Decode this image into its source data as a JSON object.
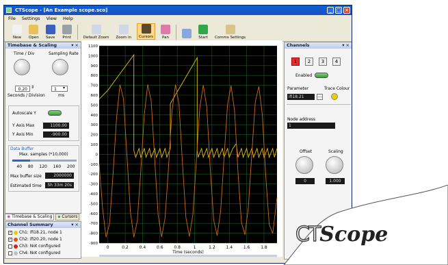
{
  "window": {
    "title": "CTScope - [An Example scope.sco]"
  },
  "menu": [
    "File",
    "Settings",
    "View",
    "Help"
  ],
  "toolbar": [
    {
      "label": "New",
      "icon": "new-file-icon",
      "color": "#f2f2f2"
    },
    {
      "label": "Open",
      "icon": "folder-icon",
      "color": "#e8c15a"
    },
    {
      "label": "Save",
      "icon": "floppy-disk-icon",
      "color": "#3a5fc0"
    },
    {
      "label": "Print",
      "icon": "printer-icon",
      "color": "#9aa0a8"
    },
    {
      "label": "Default Zoom",
      "icon": "default-zoom-icon",
      "color": "#cfd8e6"
    },
    {
      "label": "Zoom in",
      "icon": "zoom-in-icon",
      "color": "#cfd8e6"
    },
    {
      "label": "Cursors",
      "icon": "cursors-icon",
      "color": "#5a4a2a",
      "active": true
    },
    {
      "label": "Pan",
      "icon": "pan-icon",
      "color": "#e07aa8"
    },
    {
      "label": "",
      "icon": "stop-icon",
      "color": "#8aa6e0"
    },
    {
      "label": "Start",
      "icon": "play-icon",
      "color": "#2ea84a"
    },
    {
      "label": "Comms Settings",
      "icon": "comms-settings-icon",
      "color": "#d6c48a"
    }
  ],
  "timebase": {
    "title": "Timebase & Scaling",
    "time_div_label": "Time / Div",
    "sampling_rate_label": "Sampling Rate",
    "time_div_value": "0.20",
    "seconds_label": "Seconds / Division",
    "sampling_value": "1",
    "ms_label": "ms",
    "autoscale_label": "Autoscale Y",
    "y_max_label": "Y Axis Max",
    "y_max_value": "1100.00",
    "y_min_label": "Y Axis Min",
    "y_min_value": "-900.00",
    "buffer_title": "Data Buffer",
    "max_samples_label": "Max. samples (*10,000)",
    "slider_ticks": [
      "40",
      "80",
      "120",
      "160",
      "200"
    ],
    "slider_fraction": 0.28,
    "buffer_size_label": "Max buffer size",
    "buffer_size_value": "2000000",
    "est_time_label": "Estimated time",
    "est_time_value": "5h 33m 20s"
  },
  "tabs": [
    {
      "label": "Timebase & Scaling"
    },
    {
      "label": "Cursors"
    }
  ],
  "summary": {
    "title": "Channel Summary",
    "items": [
      {
        "label": "Ch1: ifi18.21, node 1",
        "color": "#e8d000",
        "checked": true
      },
      {
        "label": "Ch2: ifi20.20, node 1",
        "color": "#e05020",
        "checked": true
      },
      {
        "label": "Ch3: Not configured",
        "color": "#d02020",
        "checked": false
      },
      {
        "label": "Ch4: Not configured",
        "color": "#c0c0c0",
        "checked": false
      }
    ]
  },
  "channels": {
    "title": "Channels",
    "buttons": [
      "1",
      "2",
      "3",
      "4"
    ],
    "selected": 0,
    "enabled_label": "Enabled",
    "parameter_label": "Parameter",
    "parameter_value": "ifi18.21",
    "browse_label": "...",
    "trace_colour_label": "Trace Colour",
    "trace_colour": "#e8d000",
    "node_address_label": "Node address",
    "node_address_value": "1",
    "offset_label": "Offset",
    "offset_value": "0",
    "scaling_label": "Scaling",
    "scaling_value": "1.000"
  },
  "chart_data": {
    "type": "line",
    "xlabel": "Time (seconds)",
    "xlim": [
      -0.1,
      1.95
    ],
    "ylim": [
      -900,
      1100
    ],
    "x_ticks": [
      "0",
      "0.2",
      "0.4",
      "0.6",
      "0.8",
      "1",
      "1.2",
      "1.4",
      "1.6",
      "1.8"
    ],
    "y_ticks": [
      "1100",
      "1000",
      "900",
      "800",
      "700",
      "600",
      "500",
      "400",
      "300",
      "200",
      "100",
      "0",
      "-100",
      "-200",
      "-300",
      "-400",
      "-500",
      "-600",
      "-700",
      "-800",
      "-900"
    ],
    "grid": true,
    "series": [
      {
        "color": "#e8c200",
        "x": [
          -0.1,
          0.0,
          0.3,
          0.3,
          0.32,
          0.36,
          0.38,
          0.42,
          0.44,
          0.48,
          0.5,
          0.54,
          0.56,
          0.6,
          0.62,
          0.66,
          0.68,
          0.72,
          0.72,
          0.73,
          1.03,
          1.03,
          1.04,
          1.08,
          1.1,
          1.14,
          1.16,
          1.2,
          1.22,
          1.26,
          1.28,
          1.32,
          1.34,
          1.38,
          1.4,
          1.44,
          1.45,
          1.48,
          1.5,
          1.54,
          1.56,
          1.6,
          1.62,
          1.66,
          1.68,
          1.72,
          1.74,
          1.78,
          1.8,
          1.84,
          1.86,
          1.9,
          1.92,
          1.95
        ],
        "y": [
          560,
          650,
          1010,
          40,
          -30,
          60,
          -30,
          60,
          -30,
          60,
          -30,
          60,
          -30,
          60,
          -30,
          60,
          -30,
          60,
          510,
          530,
          980,
          40,
          -30,
          60,
          -30,
          60,
          -30,
          60,
          -30,
          60,
          -30,
          60,
          -30,
          60,
          -30,
          60,
          70,
          110,
          -30,
          60,
          -30,
          60,
          -30,
          60,
          -30,
          60,
          -30,
          60,
          -30,
          60,
          -30,
          60,
          -30,
          60
        ]
      },
      {
        "color": "#d06a1a",
        "x": [
          -0.1,
          -0.06,
          -0.02,
          0.02,
          0.06,
          0.1,
          0.14,
          0.18,
          0.22,
          0.26,
          0.3,
          0.34,
          0.38,
          0.42,
          0.46,
          0.5,
          0.54,
          0.58,
          0.62,
          0.66,
          0.7,
          0.74,
          0.78,
          0.82,
          0.86,
          0.9,
          0.94,
          0.98,
          1.02,
          1.06,
          1.1,
          1.14,
          1.18,
          1.22,
          1.26,
          1.3,
          1.34,
          1.38,
          1.42,
          1.46,
          1.5,
          1.54,
          1.58,
          1.62,
          1.66,
          1.7,
          1.74,
          1.78,
          1.82,
          1.86,
          1.9,
          1.95
        ],
        "y": [
          -100,
          -556,
          -840,
          -703,
          -199,
          369,
          706,
          565,
          -13,
          -586,
          -841,
          -675,
          -158,
          406,
          708,
          539,
          -54,
          -614,
          -838,
          -643,
          -116,
          441,
          707,
          510,
          -95,
          -640,
          -833,
          -609,
          -73,
          474,
          703,
          479,
          -136,
          -666,
          -825,
          -574,
          -31,
          505,
          697,
          446,
          -176,
          -690,
          -815,
          -537,
          12,
          534,
          689,
          412,
          -215,
          -711,
          -802,
          -439
        ]
      }
    ]
  }
}
